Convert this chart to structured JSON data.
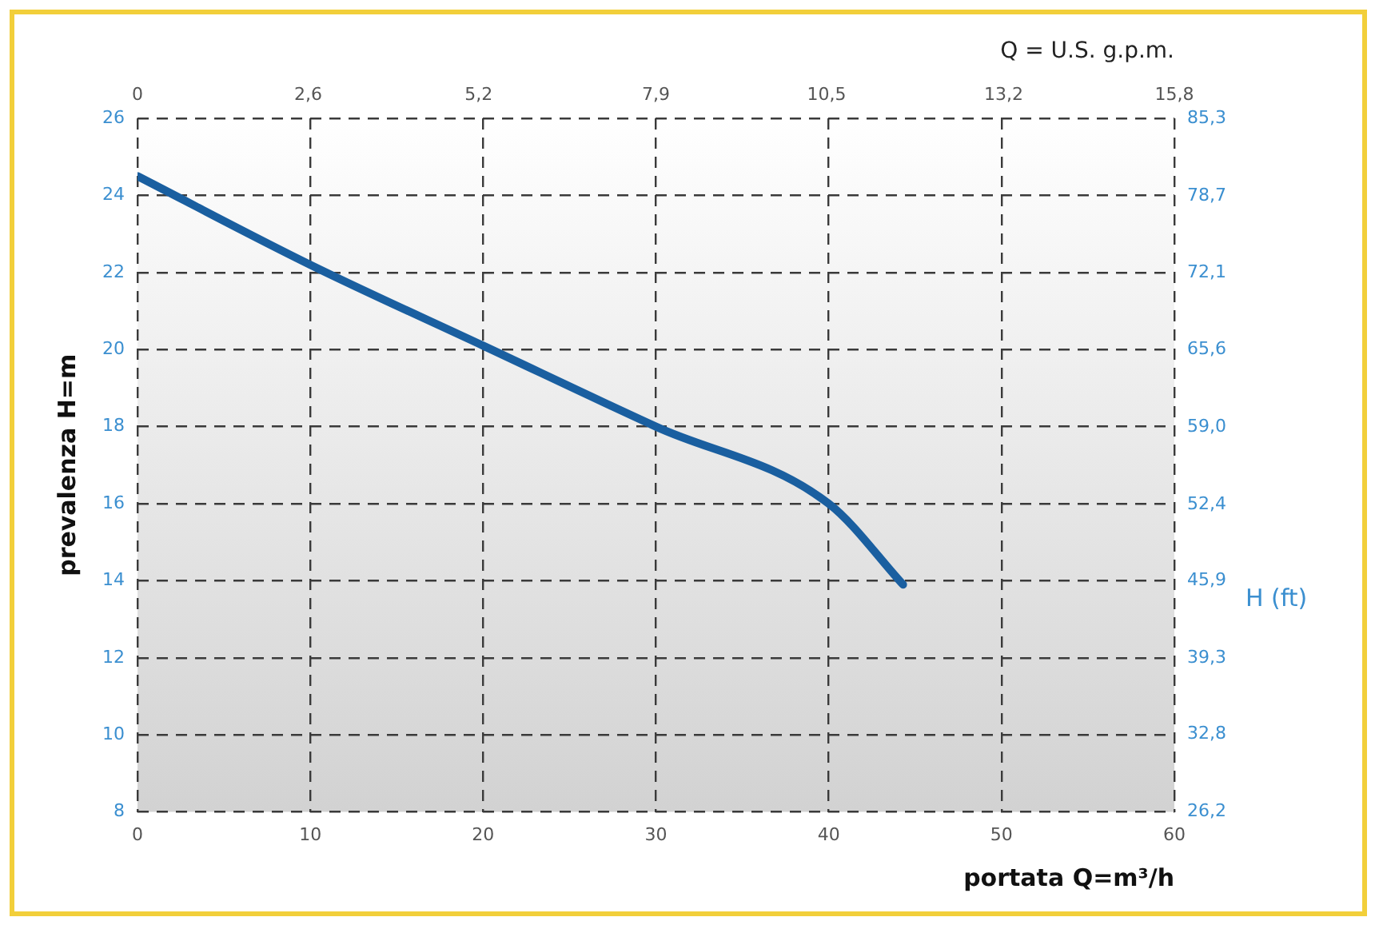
{
  "chart_data": {
    "type": "line",
    "xlabel": "portata Q=m³/h",
    "ylabel": "prevalenza H=m",
    "y2label": "H (ft)",
    "x2label": "Q = U.S. g.p.m.",
    "series": [
      {
        "color": "#1a5fa0",
        "x": [
          0,
          10,
          20,
          30,
          40,
          44.3
        ],
        "values": [
          24.5,
          22.2,
          20.1,
          18.0,
          16.0,
          13.9
        ]
      }
    ],
    "xlim": [
      0,
      60
    ],
    "xticks": [
      0,
      10,
      20,
      30,
      40,
      50,
      60
    ],
    "ylim": [
      8,
      26
    ],
    "yticks": [
      8,
      10,
      12,
      14,
      16,
      18,
      20,
      22,
      24,
      26
    ],
    "x2lim": [
      0,
      15.8
    ],
    "x2ticks": [
      0,
      {
        "value": 2.6,
        "label": "2,6"
      },
      {
        "value": 5.2,
        "label": "5,2"
      },
      {
        "value": 7.9,
        "label": "7,9"
      },
      {
        "value": 10.5,
        "label": "10,5"
      },
      {
        "value": 13.2,
        "label": "13,2"
      },
      {
        "value": 15.8,
        "label": "15,8"
      }
    ],
    "y2lim": [
      26.2,
      85.3
    ],
    "y2ticks": [
      {
        "value": 26.2,
        "label": "26,2"
      },
      {
        "value": 32.8,
        "label": "32,8"
      },
      {
        "value": 39.3,
        "label": "39,3"
      },
      {
        "value": 45.9,
        "label": "45,9"
      },
      {
        "value": 52.4,
        "label": "52,4"
      },
      {
        "value": 59.0,
        "label": "59,0"
      },
      {
        "value": 65.6,
        "label": "65,6"
      },
      {
        "value": 72.1,
        "label": "72,1"
      },
      {
        "value": 78.7,
        "label": "78,7"
      },
      {
        "value": 85.3,
        "label": "85,3"
      }
    ],
    "grid": true,
    "marker": "none",
    "legend": false
  }
}
